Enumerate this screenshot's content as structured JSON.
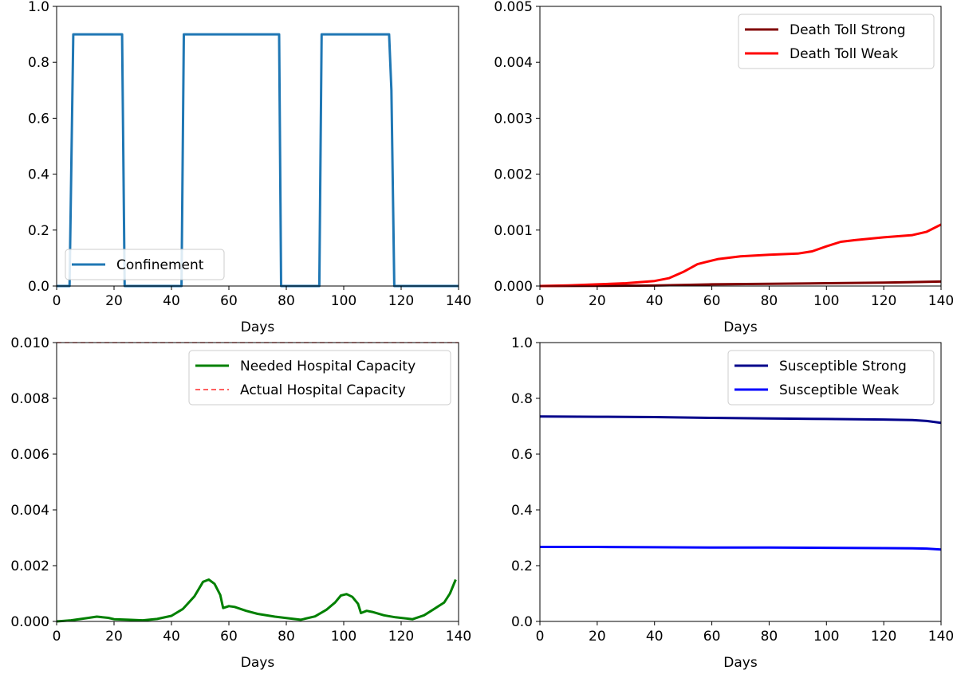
{
  "chart_data": [
    {
      "type": "line",
      "title": "",
      "xlabel": "Days",
      "ylabel": "",
      "xlim": [
        0,
        140
      ],
      "ylim": [
        0,
        1.0
      ],
      "xticks": [
        0,
        20,
        40,
        60,
        80,
        100,
        120,
        140
      ],
      "yticks": [
        "0.0",
        "0.2",
        "0.4",
        "0.6",
        "0.8",
        "1.0"
      ],
      "legend_position": "lower-left",
      "series": [
        {
          "name": "Confinement",
          "color": "#1f77b4",
          "style": "solid",
          "x": [
            0,
            4.5,
            5.8,
            22.8,
            23.7,
            43.5,
            44.3,
            77.5,
            78.2,
            91.5,
            92.3,
            115.8,
            116.6,
            117.6,
            140
          ],
          "y": [
            0,
            0,
            0.9,
            0.9,
            0,
            0,
            0.9,
            0.9,
            0,
            0,
            0.9,
            0.9,
            0.7,
            0,
            0
          ]
        }
      ]
    },
    {
      "type": "line",
      "title": "",
      "xlabel": "Days",
      "ylabel": "",
      "xlim": [
        0,
        140
      ],
      "ylim": [
        0,
        0.005
      ],
      "xticks": [
        0,
        20,
        40,
        60,
        80,
        100,
        120,
        140
      ],
      "yticks": [
        "0.000",
        "0.001",
        "0.002",
        "0.003",
        "0.004",
        "0.005"
      ],
      "legend_position": "top-right",
      "series": [
        {
          "name": "Death Toll Strong",
          "color": "#800000",
          "style": "solid",
          "x": [
            0,
            20,
            40,
            60,
            80,
            100,
            120,
            140
          ],
          "y": [
            0,
            3e-06,
            8e-06,
            3e-05,
            4e-05,
            5e-05,
            6e-05,
            8e-05
          ]
        },
        {
          "name": "Death Toll Weak",
          "color": "#ff0000",
          "style": "solid",
          "x": [
            0,
            10,
            20,
            30,
            40,
            45,
            50,
            55,
            58,
            62,
            70,
            80,
            90,
            95,
            100,
            105,
            110,
            120,
            130,
            135,
            140
          ],
          "y": [
            0,
            1e-05,
            3e-05,
            5e-05,
            9e-05,
            0.00014,
            0.00025,
            0.00039,
            0.00043,
            0.00048,
            0.00053,
            0.00056,
            0.00058,
            0.00062,
            0.00071,
            0.00079,
            0.00082,
            0.00087,
            0.00091,
            0.00097,
            0.0011
          ]
        }
      ]
    },
    {
      "type": "line",
      "title": "",
      "xlabel": "Days",
      "ylabel": "",
      "xlim": [
        0,
        140
      ],
      "ylim": [
        0,
        0.01
      ],
      "xticks": [
        0,
        20,
        40,
        60,
        80,
        100,
        120,
        140
      ],
      "yticks": [
        "0.000",
        "0.002",
        "0.004",
        "0.006",
        "0.008",
        "0.010"
      ],
      "legend_position": "top-right",
      "series": [
        {
          "name": "Needed Hospital Capacity",
          "color": "#008000",
          "style": "solid",
          "x": [
            0,
            5,
            10,
            14,
            18,
            20,
            25,
            30,
            35,
            40,
            44,
            48,
            51,
            53,
            55,
            57,
            58,
            60,
            62,
            66,
            70,
            76,
            80,
            85,
            90,
            94,
            97,
            99,
            101,
            103,
            105,
            106,
            108,
            110,
            114,
            118,
            124,
            128,
            132,
            135,
            137,
            139
          ],
          "y": [
            0,
            4e-05,
            0.00011,
            0.00017,
            0.00013,
            8e-05,
            6e-05,
            4e-05,
            9e-05,
            0.0002,
            0.00045,
            0.0009,
            0.00142,
            0.0015,
            0.00135,
            0.00095,
            0.00048,
            0.00055,
            0.00052,
            0.00038,
            0.00027,
            0.00017,
            0.00012,
            6e-05,
            0.00018,
            0.00042,
            0.00068,
            0.00093,
            0.00098,
            0.00088,
            0.00063,
            0.0003,
            0.00038,
            0.00034,
            0.00022,
            0.00015,
            8e-05,
            0.00022,
            0.00048,
            0.00068,
            0.001,
            0.0015
          ]
        },
        {
          "name": "Actual Hospital Capacity",
          "color": "#ff0000",
          "style": "dashed",
          "x": [
            0,
            140
          ],
          "y": [
            0.01,
            0.01
          ]
        }
      ]
    },
    {
      "type": "line",
      "title": "",
      "xlabel": "Days",
      "ylabel": "",
      "xlim": [
        0,
        140
      ],
      "ylim": [
        0,
        1.0
      ],
      "xticks": [
        0,
        20,
        40,
        60,
        80,
        100,
        120,
        140
      ],
      "yticks": [
        "0.0",
        "0.2",
        "0.4",
        "0.6",
        "0.8",
        "1.0"
      ],
      "legend_position": "top-right",
      "series": [
        {
          "name": "Susceptible Strong",
          "color": "#00008b",
          "style": "solid",
          "x": [
            0,
            20,
            40,
            60,
            80,
            100,
            120,
            130,
            135,
            140
          ],
          "y": [
            0.735,
            0.734,
            0.733,
            0.73,
            0.728,
            0.726,
            0.724,
            0.722,
            0.719,
            0.712
          ]
        },
        {
          "name": "Susceptible Weak",
          "color": "#0000ff",
          "style": "solid",
          "x": [
            0,
            20,
            40,
            60,
            80,
            100,
            120,
            130,
            135,
            140
          ],
          "y": [
            0.267,
            0.267,
            0.266,
            0.265,
            0.265,
            0.264,
            0.263,
            0.262,
            0.261,
            0.258
          ]
        }
      ]
    }
  ]
}
